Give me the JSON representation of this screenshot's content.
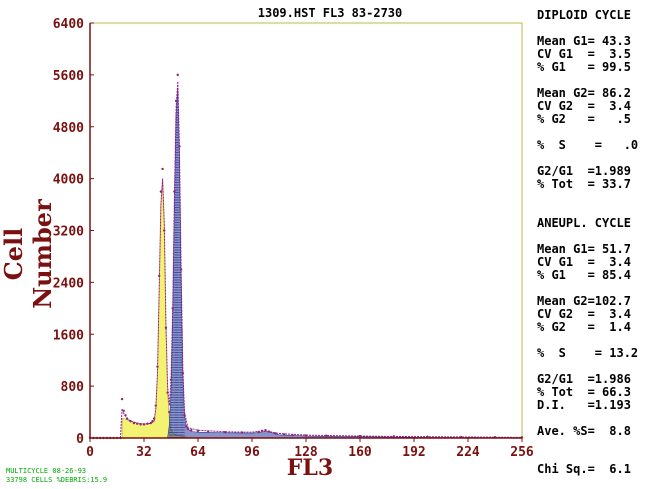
{
  "title": "1309.HST FL3 83-2730",
  "footer": {
    "line1": "MULTICYCLE 08-26-93",
    "line2": "33798 CELLS %DEBRIS:15.9"
  },
  "panel": {
    "diploid_header": "DIPLOID CYCLE",
    "dip_g1_mean": "Mean G1= 43.3",
    "dip_g1_cv": "CV G1  =  3.5",
    "dip_g1_pct": "% G1   = 99.5",
    "dip_g2_mean": "Mean G2= 86.2",
    "dip_g2_cv": "CV G2  =  3.4",
    "dip_g2_pct": "% G2   =   .5",
    "dip_s": "%  S    =   .0",
    "dip_ratio": "G2/G1  =1.989",
    "dip_tot": "% Tot  = 33.7",
    "aneu_header": "ANEUPL. CYCLE",
    "an_g1_mean": "Mean G1= 51.7",
    "an_g1_cv": "CV G1  =  3.4",
    "an_g1_pct": "% G1   = 85.4",
    "an_g2_mean": "Mean G2=102.7",
    "an_g2_cv": "CV G2  =  3.4",
    "an_g2_pct": "% G2   =  1.4",
    "an_s": "%  S    = 13.2",
    "an_ratio": "G2/G1  =1.986",
    "an_tot": "% Tot  = 66.3",
    "an_di": "D.I.   =1.193",
    "ave_s": "Ave. %S=  8.8",
    "chi": "Chi Sq.=  6.1"
  },
  "chart_data": {
    "type": "histogram",
    "title": "1309.HST FL3 83-2730",
    "xlabel": "FL3",
    "ylabel": "Cell Number",
    "xlim": [
      0,
      256
    ],
    "ylim": [
      0,
      6400
    ],
    "xticks": [
      0,
      32,
      64,
      96,
      128,
      160,
      192,
      224,
      256
    ],
    "yticks": [
      0,
      800,
      1600,
      2400,
      3200,
      4000,
      4800,
      5600,
      6400
    ],
    "colors": {
      "axis": "#7a1010",
      "tick_label": "#7a1010",
      "frame": "#b8b84a",
      "diploid_fill": "#f2f05a",
      "aneuploid_fill": "#2a3a9a",
      "data_points": "#8a2a6a",
      "fit_line": "#9a1a8a"
    },
    "histogram": [
      [
        0,
        0
      ],
      [
        2,
        0
      ],
      [
        4,
        0
      ],
      [
        6,
        0
      ],
      [
        8,
        0
      ],
      [
        10,
        0
      ],
      [
        12,
        0
      ],
      [
        14,
        0
      ],
      [
        16,
        0
      ],
      [
        18,
        0
      ],
      [
        19,
        600
      ],
      [
        20,
        420
      ],
      [
        21,
        350
      ],
      [
        22,
        300
      ],
      [
        24,
        260
      ],
      [
        26,
        230
      ],
      [
        28,
        220
      ],
      [
        30,
        210
      ],
      [
        32,
        210
      ],
      [
        34,
        220
      ],
      [
        36,
        230
      ],
      [
        37,
        260
      ],
      [
        38,
        300
      ],
      [
        39,
        500
      ],
      [
        40,
        1100
      ],
      [
        41,
        2500
      ],
      [
        42,
        3800
      ],
      [
        43,
        4150
      ],
      [
        44,
        3200
      ],
      [
        45,
        1700
      ],
      [
        46,
        700
      ],
      [
        47,
        400
      ],
      [
        48,
        900
      ],
      [
        49,
        2000
      ],
      [
        50,
        3800
      ],
      [
        51,
        5200
      ],
      [
        52,
        5600
      ],
      [
        53,
        4500
      ],
      [
        54,
        2600
      ],
      [
        55,
        1000
      ],
      [
        56,
        350
      ],
      [
        57,
        180
      ],
      [
        58,
        140
      ],
      [
        60,
        120
      ],
      [
        64,
        110
      ],
      [
        70,
        100
      ],
      [
        80,
        90
      ],
      [
        90,
        85
      ],
      [
        100,
        90
      ],
      [
        102,
        110
      ],
      [
        104,
        120
      ],
      [
        106,
        100
      ],
      [
        110,
        70
      ],
      [
        115,
        55
      ],
      [
        120,
        45
      ],
      [
        128,
        40
      ],
      [
        140,
        35
      ],
      [
        160,
        30
      ],
      [
        180,
        25
      ],
      [
        200,
        20
      ],
      [
        220,
        15
      ],
      [
        240,
        12
      ],
      [
        256,
        10
      ]
    ],
    "fit": [
      [
        18,
        0
      ],
      [
        19,
        450
      ],
      [
        20,
        380
      ],
      [
        22,
        300
      ],
      [
        24,
        260
      ],
      [
        28,
        230
      ],
      [
        32,
        215
      ],
      [
        36,
        225
      ],
      [
        38,
        260
      ],
      [
        39,
        450
      ],
      [
        40,
        1000
      ],
      [
        41,
        2300
      ],
      [
        42,
        3600
      ],
      [
        43,
        4000
      ],
      [
        44,
        3300
      ],
      [
        45,
        1800
      ],
      [
        46,
        800
      ],
      [
        47,
        500
      ],
      [
        48,
        900
      ],
      [
        49,
        2000
      ],
      [
        50,
        3700
      ],
      [
        51,
        5100
      ],
      [
        52,
        5500
      ],
      [
        53,
        4500
      ],
      [
        54,
        2600
      ],
      [
        55,
        1100
      ],
      [
        56,
        400
      ],
      [
        58,
        160
      ],
      [
        64,
        120
      ],
      [
        80,
        95
      ],
      [
        96,
        90
      ],
      [
        102,
        110
      ],
      [
        106,
        100
      ],
      [
        112,
        70
      ],
      [
        128,
        45
      ],
      [
        160,
        30
      ],
      [
        192,
        22
      ],
      [
        224,
        15
      ],
      [
        256,
        10
      ]
    ],
    "diploid_region": [
      [
        19,
        300
      ],
      [
        20,
        300
      ],
      [
        24,
        260
      ],
      [
        28,
        230
      ],
      [
        32,
        215
      ],
      [
        36,
        225
      ],
      [
        38,
        260
      ],
      [
        39,
        450
      ],
      [
        40,
        1000
      ],
      [
        41,
        2300
      ],
      [
        42,
        3600
      ],
      [
        43,
        4000
      ],
      [
        44,
        3300
      ],
      [
        45,
        1700
      ],
      [
        46,
        700
      ],
      [
        47,
        300
      ],
      [
        48,
        120
      ],
      [
        50,
        60
      ],
      [
        52,
        40
      ],
      [
        56,
        20
      ],
      [
        60,
        0
      ]
    ],
    "aneuploid_region": [
      [
        46,
        0
      ],
      [
        47,
        200
      ],
      [
        48,
        700
      ],
      [
        49,
        1900
      ],
      [
        50,
        3600
      ],
      [
        51,
        5000
      ],
      [
        52,
        5400
      ],
      [
        53,
        4400
      ],
      [
        54,
        2500
      ],
      [
        55,
        1000
      ],
      [
        56,
        350
      ],
      [
        57,
        180
      ],
      [
        58,
        140
      ],
      [
        60,
        100
      ],
      [
        64,
        90
      ],
      [
        80,
        80
      ],
      [
        96,
        75
      ],
      [
        100,
        85
      ],
      [
        104,
        100
      ],
      [
        108,
        80
      ],
      [
        112,
        50
      ],
      [
        128,
        30
      ],
      [
        160,
        20
      ],
      [
        200,
        10
      ],
      [
        256,
        5
      ]
    ]
  }
}
